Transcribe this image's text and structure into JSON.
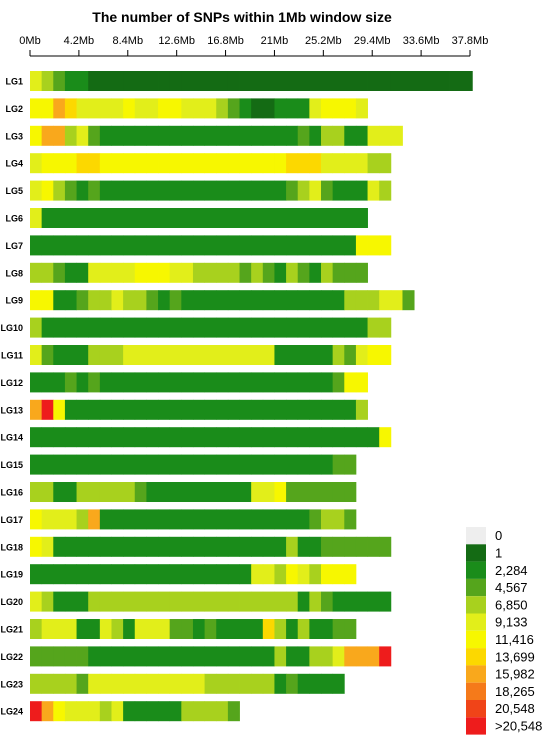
{
  "chart_data": {
    "type": "heatmap",
    "title": "The number of SNPs within 1Mb window size",
    "xlabel": "",
    "ylabel": "",
    "x_unit": "Mb",
    "x_tick_values": [
      0,
      4.2,
      8.4,
      12.6,
      16.8,
      21,
      25.2,
      29.4,
      33.6,
      37.8
    ],
    "x_tick_labels": [
      "0Mb",
      "4.2Mb",
      "8.4Mb",
      "12.6Mb",
      "16.8Mb",
      "21Mb",
      "25.2Mb",
      "29.4Mb",
      "33.6Mb",
      "37.8Mb"
    ],
    "xlim": [
      0,
      37.8
    ],
    "window_size_mb": 1,
    "legend": {
      "position": "bottom-right",
      "levels": [
        "0",
        "1",
        "2,284",
        "4,567",
        "6,850",
        "9,133",
        "11,416",
        "13,699",
        "15,982",
        "18,265",
        "20,548",
        ">20,548"
      ],
      "colors": [
        "#eeeeee",
        "#146b14",
        "#1a8c1a",
        "#55a51c",
        "#a8d11e",
        "#e2ee1a",
        "#f7f700",
        "#fcd800",
        "#f9a81c",
        "#f57a1a",
        "#f04418",
        "#ee1c1c"
      ]
    },
    "chromosomes": [
      {
        "name": "LG1",
        "bins": "54322111111111111111111111111111111111"
      },
      {
        "name": "LG2",
        "bins": "66875555655665554321122256665"
      },
      {
        "name": "LG3",
        "bins": "68845322222222222222222324422555"
      },
      {
        "name": "LG4",
        "bins": "5666776666666666666666777555544"
      },
      {
        "name": "LG5",
        "bins": "5643232222222222222222345322254"
      },
      {
        "name": "LG6",
        "bins": "52222222222222222222222222222"
      },
      {
        "name": "LG7",
        "bins": "2222222222222222222222222222666"
      },
      {
        "name": "LG8",
        "bins": "44322555566655444434324324333"
      },
      {
        "name": "LG9",
        "bins": "662234454432322222222222222444553"
      },
      {
        "name": "LG10",
        "bins": "4222222222222222222222222222244"
      },
      {
        "name": "LG11",
        "bins": "5322244455555555555552222243566"
      },
      {
        "name": "LG12",
        "bins": "22232322222222222222222222366"
      },
      {
        "name": "LG13",
        "bins": "8B622222222222222222222222224"
      },
      {
        "name": "LG14",
        "bins": "2222222222222222222222222222226"
      },
      {
        "name": "LG15",
        "bins": "2222222222222222222222222233"
      },
      {
        "name": "LG16",
        "bins": "4422444443222222222556333333"
      },
      {
        "name": "LG17",
        "bins": "6555482222222222222222223443"
      },
      {
        "name": "LG18",
        "bins": "6522222222222222222222422333333"
      },
      {
        "name": "LG19",
        "bins": "2222222222222222222554654666"
      },
      {
        "name": "LG20",
        "bins": "5422244444444444444444424322222"
      },
      {
        "name": "LG21",
        "bins": "4555225425553323222274242233"
      },
      {
        "name": "LG22",
        "bins": "333332222222222222222422445888B"
      },
      {
        "name": "LG23",
        "bins": "444435555555555444444232222"
      },
      {
        "name": "LG24",
        "bins": "B86555452222244443"
      }
    ]
  }
}
